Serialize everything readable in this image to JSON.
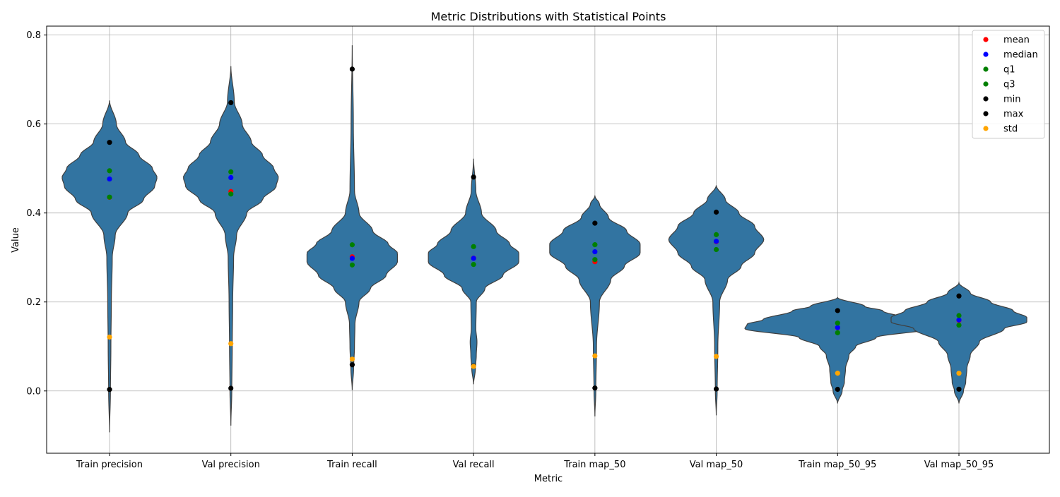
{
  "chart_data": {
    "type": "violin",
    "title": "Metric Distributions with Statistical Points",
    "xlabel": "Metric",
    "ylabel": "Value",
    "ylim": [
      -0.14,
      0.82
    ],
    "yticks": [
      0.0,
      0.2,
      0.4,
      0.6,
      0.8
    ],
    "ytick_labels": [
      "0.0",
      "0.2",
      "0.4",
      "0.6",
      "0.8"
    ],
    "grid": true,
    "legend_position": "top-right",
    "violin_color": "#3274a1",
    "categories": [
      "Train precision",
      "Val precision",
      "Train recall",
      "Val recall",
      "Train map_50",
      "Val map_50",
      "Train map_50_95",
      "Val map_50_95"
    ],
    "violins": [
      {
        "extent": [
          -0.093,
          0.653
        ],
        "profile": [
          [
            -0.093,
            0.0
          ],
          [
            0.0,
            0.004
          ],
          [
            0.1,
            0.006
          ],
          [
            0.2,
            0.008
          ],
          [
            0.3,
            0.012
          ],
          [
            0.35,
            0.025
          ],
          [
            0.4,
            0.08
          ],
          [
            0.43,
            0.15
          ],
          [
            0.46,
            0.2
          ],
          [
            0.48,
            0.21
          ],
          [
            0.5,
            0.19
          ],
          [
            0.53,
            0.13
          ],
          [
            0.56,
            0.07
          ],
          [
            0.6,
            0.03
          ],
          [
            0.653,
            0.0
          ]
        ]
      },
      {
        "extent": [
          -0.078,
          0.73
        ],
        "profile": [
          [
            -0.078,
            0.0
          ],
          [
            0.0,
            0.004
          ],
          [
            0.1,
            0.006
          ],
          [
            0.2,
            0.008
          ],
          [
            0.3,
            0.012
          ],
          [
            0.35,
            0.025
          ],
          [
            0.4,
            0.07
          ],
          [
            0.43,
            0.14
          ],
          [
            0.46,
            0.2
          ],
          [
            0.48,
            0.21
          ],
          [
            0.5,
            0.19
          ],
          [
            0.53,
            0.14
          ],
          [
            0.56,
            0.09
          ],
          [
            0.6,
            0.05
          ],
          [
            0.65,
            0.015
          ],
          [
            0.73,
            0.0
          ]
        ]
      },
      {
        "extent": [
          0.002,
          0.777
        ],
        "profile": [
          [
            0.002,
            0.0
          ],
          [
            0.05,
            0.006
          ],
          [
            0.1,
            0.01
          ],
          [
            0.15,
            0.012
          ],
          [
            0.2,
            0.03
          ],
          [
            0.23,
            0.08
          ],
          [
            0.26,
            0.15
          ],
          [
            0.29,
            0.2
          ],
          [
            0.31,
            0.2
          ],
          [
            0.33,
            0.16
          ],
          [
            0.36,
            0.09
          ],
          [
            0.4,
            0.03
          ],
          [
            0.45,
            0.01
          ],
          [
            0.6,
            0.005
          ],
          [
            0.777,
            0.0
          ]
        ]
      },
      {
        "extent": [
          0.015,
          0.522
        ],
        "profile": [
          [
            0.015,
            0.0
          ],
          [
            0.05,
            0.008
          ],
          [
            0.08,
            0.012
          ],
          [
            0.11,
            0.015
          ],
          [
            0.14,
            0.01
          ],
          [
            0.2,
            0.012
          ],
          [
            0.23,
            0.05
          ],
          [
            0.26,
            0.13
          ],
          [
            0.29,
            0.2
          ],
          [
            0.31,
            0.2
          ],
          [
            0.33,
            0.16
          ],
          [
            0.36,
            0.1
          ],
          [
            0.4,
            0.035
          ],
          [
            0.45,
            0.01
          ],
          [
            0.522,
            0.0
          ]
        ]
      },
      {
        "extent": [
          -0.057,
          0.438
        ],
        "profile": [
          [
            -0.057,
            0.0
          ],
          [
            0.0,
            0.004
          ],
          [
            0.1,
            0.007
          ],
          [
            0.2,
            0.02
          ],
          [
            0.25,
            0.07
          ],
          [
            0.28,
            0.13
          ],
          [
            0.31,
            0.2
          ],
          [
            0.33,
            0.2
          ],
          [
            0.36,
            0.14
          ],
          [
            0.39,
            0.06
          ],
          [
            0.42,
            0.02
          ],
          [
            0.438,
            0.0
          ]
        ]
      },
      {
        "extent": [
          -0.055,
          0.462
        ],
        "profile": [
          [
            -0.055,
            0.0
          ],
          [
            0.0,
            0.004
          ],
          [
            0.1,
            0.007
          ],
          [
            0.2,
            0.015
          ],
          [
            0.25,
            0.05
          ],
          [
            0.28,
            0.11
          ],
          [
            0.31,
            0.17
          ],
          [
            0.34,
            0.21
          ],
          [
            0.37,
            0.17
          ],
          [
            0.4,
            0.1
          ],
          [
            0.43,
            0.04
          ],
          [
            0.462,
            0.0
          ]
        ]
      },
      {
        "extent": [
          -0.028,
          0.21
        ],
        "profile": [
          [
            -0.028,
            0.0
          ],
          [
            0.0,
            0.02
          ],
          [
            0.02,
            0.03
          ],
          [
            0.05,
            0.035
          ],
          [
            0.08,
            0.05
          ],
          [
            0.1,
            0.08
          ],
          [
            0.12,
            0.17
          ],
          [
            0.14,
            0.41
          ],
          [
            0.15,
            0.4
          ],
          [
            0.16,
            0.33
          ],
          [
            0.18,
            0.2
          ],
          [
            0.19,
            0.12
          ],
          [
            0.21,
            0.0
          ]
        ]
      },
      {
        "extent": [
          -0.028,
          0.243
        ],
        "profile": [
          [
            -0.028,
            0.0
          ],
          [
            0.0,
            0.02
          ],
          [
            0.02,
            0.03
          ],
          [
            0.05,
            0.035
          ],
          [
            0.08,
            0.05
          ],
          [
            0.11,
            0.09
          ],
          [
            0.14,
            0.2
          ],
          [
            0.155,
            0.3
          ],
          [
            0.165,
            0.3
          ],
          [
            0.18,
            0.24
          ],
          [
            0.2,
            0.14
          ],
          [
            0.22,
            0.05
          ],
          [
            0.243,
            0.0
          ]
        ]
      }
    ],
    "point_series": [
      {
        "name": "mean",
        "color": "#ff0000",
        "values": [
          0.4353,
          0.4483,
          0.3015,
          0.2984,
          0.2905,
          0.3356,
          0.1422,
          0.1586
        ]
      },
      {
        "name": "median",
        "color": "#0000ff",
        "values": [
          0.4764,
          0.4796,
          0.2979,
          0.2981,
          0.3129,
          0.3363,
          0.1425,
          0.1595
        ]
      },
      {
        "name": "q1",
        "color": "#008000",
        "values": [
          0.4357,
          0.4426,
          0.2832,
          0.2843,
          0.2953,
          0.3178,
          0.1308,
          0.1479
        ]
      },
      {
        "name": "q3",
        "color": "#008000",
        "values": [
          0.4949,
          0.4925,
          0.3285,
          0.3244,
          0.3287,
          0.3513,
          0.1524,
          0.1694
        ]
      },
      {
        "name": "min",
        "color": "#000000",
        "values": [
          0.0033,
          0.0061,
          0.0588,
          0.0563,
          0.0066,
          0.0044,
          0.0036,
          0.0039
        ]
      },
      {
        "name": "max",
        "color": "#000000",
        "values": [
          0.5587,
          0.6479,
          0.7234,
          0.4807,
          0.3771,
          0.4019,
          0.1806,
          0.2134
        ]
      },
      {
        "name": "std",
        "color": "#ffa500",
        "values": [
          0.1211,
          0.1063,
          0.0715,
          0.0552,
          0.0789,
          0.0776,
          0.0399,
          0.0398
        ]
      }
    ]
  }
}
